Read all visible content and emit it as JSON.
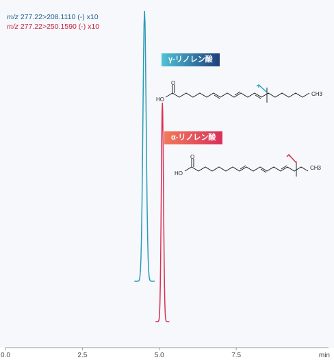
{
  "legend": {
    "items": [
      {
        "prefix": "m/z",
        "text": "277.22>208.1110 (-) x10",
        "color": "#1e5f8c"
      },
      {
        "prefix": "m/z",
        "text": "277.22>250.1590 (-) x10",
        "color": "#c8203a"
      }
    ]
  },
  "badges": {
    "gamma": {
      "text": "γ-リノレン酸",
      "gradient": [
        "#4fc3d6",
        "#1e3f7a"
      ]
    },
    "alpha": {
      "text": "α-リノレン酸",
      "gradient": [
        "#f07a5a",
        "#d9305a"
      ]
    }
  },
  "structures": {
    "gamma": {
      "ho": "HO",
      "o": "O",
      "ch3": "CH3"
    },
    "alpha": {
      "ho": "HO",
      "o": "O",
      "ch3": "CH3"
    }
  },
  "chart_data": {
    "type": "line",
    "xlim": [
      0.0,
      10.5
    ],
    "x_ticks": [
      0.0,
      2.5,
      5.0,
      7.5
    ],
    "x_tick_labels": [
      "0.0",
      "2.5",
      "5.0",
      "7.5"
    ],
    "x_unit_label": "min",
    "series": [
      {
        "label": "m/z 277.22>208.1110 (-) x10",
        "baseline_color_start": "#4aa8c8",
        "baseline_color_end": "#1e3f7a",
        "peak_color": "#2a9bb5",
        "peak_x": 4.52,
        "peak_relative_height": 1.0
      },
      {
        "label": "m/z 277.22>250.1590 (-) x10",
        "baseline_color_start": "#f08a4a",
        "baseline_color_end": "#d9305a",
        "peak_color": "#d93050",
        "peak_x": 5.1,
        "peak_relative_height": 0.81
      }
    ]
  }
}
